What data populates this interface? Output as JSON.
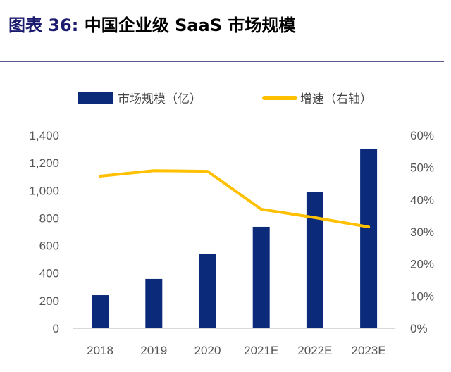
{
  "title": {
    "prefix": "图表 36:",
    "text": "中国企业级 SaaS 市场规模"
  },
  "chart_data": {
    "type": "bar+line",
    "title": "中国企业级 SaaS 市场规模",
    "categories": [
      "2018",
      "2019",
      "2020",
      "2021E",
      "2022E",
      "2023E"
    ],
    "series": [
      {
        "name": "市场规模（亿）",
        "type": "bar",
        "axis": "left",
        "color": "#0b2a7a",
        "values": [
          240,
          358,
          537,
          736,
          991,
          1303
        ]
      },
      {
        "name": "增速（右轴）",
        "type": "line",
        "axis": "right",
        "color": "#ffc000",
        "values": [
          47.3,
          49.0,
          48.8,
          37.0,
          34.4,
          31.5
        ]
      }
    ],
    "ylim_left": [
      0,
      1400
    ],
    "yticks_left": [
      "0",
      "200",
      "400",
      "600",
      "800",
      "1,000",
      "1,200",
      "1,400"
    ],
    "ylim_right": [
      0,
      60
    ],
    "yticks_right": [
      "0%",
      "10%",
      "20%",
      "30%",
      "40%",
      "50%",
      "60%"
    ],
    "legend_position": "top",
    "grid": false
  }
}
